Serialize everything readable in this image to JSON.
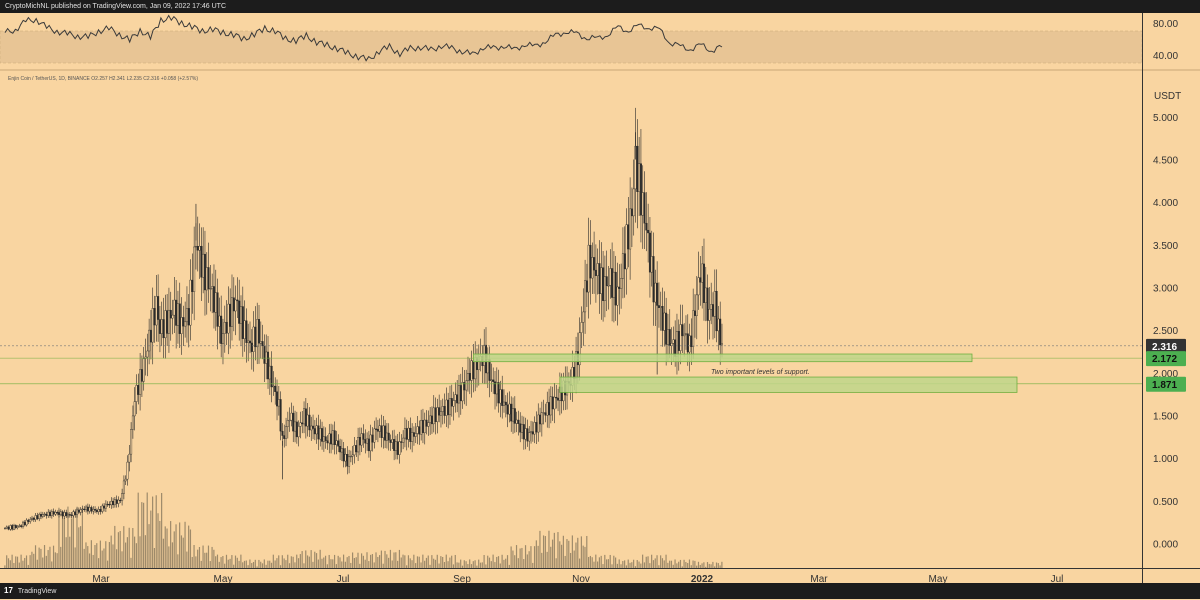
{
  "header": {
    "published": "CryptoMichNL published on TradingView.com, Jan 09, 2022 17:46 UTC"
  },
  "footer": {
    "brand": "TradingView",
    "logo": "17"
  },
  "symbol_info": "Enjin Coin / TetherUS, 1D, BINANCE  O2.257  H2.341  L2.235  C2.316  +0.058 (+2.57%)",
  "colors": {
    "background": "#f9d5a1",
    "candle": "#2a2a2a",
    "volume": "#9e8a6a",
    "zone_fill": "#bfd68a",
    "zone_stroke": "#6fae3f",
    "badge_green": "#4caf50",
    "badge_dark": "#333333",
    "rsi_band": "#e8c595"
  },
  "chart_data": [
    {
      "type": "line",
      "title": "",
      "indicator": "RSI",
      "yticks": [
        "80.00",
        "40.00"
      ],
      "ylim": [
        25,
        90
      ],
      "band": [
        30,
        70
      ],
      "x": [
        0,
        5,
        10,
        15,
        20,
        25,
        30,
        35,
        40,
        45,
        50,
        55,
        60,
        65,
        70,
        75,
        80,
        85,
        90,
        95,
        100,
        105,
        110,
        115,
        120,
        125,
        130,
        135,
        140,
        145,
        150,
        155,
        160,
        165,
        170,
        175,
        180,
        185,
        190,
        195,
        200,
        205,
        210,
        215,
        220,
        225,
        230,
        235,
        240,
        245,
        250,
        255,
        260,
        265,
        270,
        275,
        280,
        285,
        290,
        295,
        300,
        305,
        310,
        315,
        320,
        325,
        330,
        335,
        340,
        345
      ],
      "values": [
        68,
        72,
        82,
        85,
        74,
        70,
        66,
        64,
        62,
        70,
        73,
        66,
        58,
        71,
        62,
        84,
        86,
        80,
        75,
        70,
        72,
        68,
        65,
        60,
        66,
        73,
        70,
        60,
        58,
        64,
        56,
        52,
        48,
        42,
        38,
        34,
        45,
        50,
        42,
        48,
        50,
        46,
        52,
        48,
        45,
        40,
        50,
        48,
        52,
        46,
        54,
        50,
        58,
        64,
        70,
        66,
        62,
        60,
        66,
        74,
        71,
        76,
        75,
        71,
        56,
        50,
        48,
        52,
        46,
        50
      ]
    },
    {
      "type": "candlestick",
      "title": "Enjin Coin / TetherUS",
      "ylabel": "USDT",
      "ylim": [
        -0.3,
        5.35
      ],
      "yticks": [
        "5.000",
        "4.500",
        "4.000",
        "3.500",
        "3.000",
        "2.500",
        "2.000",
        "1.500",
        "1.000",
        "0.500",
        "0.000"
      ],
      "xticks": [
        "Mar",
        "May",
        "Jul",
        "Sep",
        "Nov",
        "2022",
        "Mar",
        "May",
        "Jul"
      ],
      "close_path": [
        [
          0,
          0.18
        ],
        [
          8,
          0.2
        ],
        [
          14,
          0.28
        ],
        [
          20,
          0.33
        ],
        [
          28,
          0.36
        ],
        [
          36,
          0.33
        ],
        [
          44,
          0.41
        ],
        [
          52,
          0.38
        ],
        [
          56,
          0.45
        ],
        [
          60,
          0.48
        ],
        [
          64,
          0.5
        ],
        [
          68,
          0.9
        ],
        [
          72,
          1.7
        ],
        [
          76,
          2.0
        ],
        [
          80,
          2.4
        ],
        [
          84,
          2.8
        ],
        [
          86,
          2.5
        ],
        [
          90,
          2.6
        ],
        [
          94,
          2.75
        ],
        [
          98,
          2.55
        ],
        [
          102,
          2.7
        ],
        [
          106,
          3.55
        ],
        [
          110,
          3.2
        ],
        [
          114,
          3.0
        ],
        [
          118,
          2.7
        ],
        [
          120,
          2.4
        ],
        [
          124,
          2.65
        ],
        [
          128,
          2.85
        ],
        [
          132,
          2.55
        ],
        [
          136,
          2.3
        ],
        [
          140,
          2.5
        ],
        [
          144,
          2.2
        ],
        [
          148,
          1.9
        ],
        [
          152,
          1.6
        ],
        [
          154,
          1.2
        ],
        [
          158,
          1.5
        ],
        [
          162,
          1.3
        ],
        [
          166,
          1.5
        ],
        [
          170,
          1.35
        ],
        [
          174,
          1.3
        ],
        [
          178,
          1.2
        ],
        [
          182,
          1.25
        ],
        [
          186,
          1.1
        ],
        [
          190,
          0.95
        ],
        [
          194,
          1.1
        ],
        [
          198,
          1.25
        ],
        [
          202,
          1.15
        ],
        [
          206,
          1.35
        ],
        [
          210,
          1.3
        ],
        [
          214,
          1.2
        ],
        [
          218,
          1.1
        ],
        [
          222,
          1.3
        ],
        [
          226,
          1.25
        ],
        [
          230,
          1.35
        ],
        [
          234,
          1.4
        ],
        [
          238,
          1.5
        ],
        [
          242,
          1.55
        ],
        [
          246,
          1.6
        ],
        [
          250,
          1.7
        ],
        [
          254,
          1.8
        ],
        [
          258,
          2.0
        ],
        [
          262,
          2.1
        ],
        [
          266,
          2.2
        ],
        [
          270,
          1.9
        ],
        [
          274,
          1.75
        ],
        [
          278,
          1.6
        ],
        [
          282,
          1.5
        ],
        [
          286,
          1.35
        ],
        [
          290,
          1.25
        ],
        [
          294,
          1.35
        ],
        [
          298,
          1.5
        ],
        [
          302,
          1.6
        ],
        [
          306,
          1.7
        ],
        [
          310,
          1.8
        ],
        [
          314,
          1.9
        ],
        [
          318,
          2.2
        ],
        [
          320,
          2.6
        ],
        [
          324,
          3.3
        ],
        [
          328,
          3.2
        ],
        [
          332,
          3.0
        ],
        [
          336,
          3.1
        ],
        [
          340,
          2.9
        ],
        [
          344,
          3.4
        ],
        [
          348,
          3.9
        ],
        [
          350,
          4.5
        ],
        [
          352,
          4.2
        ],
        [
          356,
          3.7
        ],
        [
          360,
          3.0
        ],
        [
          364,
          2.7
        ],
        [
          368,
          2.4
        ],
        [
          372,
          2.3
        ],
        [
          376,
          2.5
        ],
        [
          380,
          2.3
        ],
        [
          384,
          2.9
        ],
        [
          386,
          3.2
        ],
        [
          388,
          3.0
        ],
        [
          390,
          2.7
        ],
        [
          394,
          2.8
        ],
        [
          396,
          2.5
        ],
        [
          398,
          2.32
        ]
      ],
      "volume_peak": [
        0.3,
        0.5,
        1.3,
        0.6,
        0.9,
        1.6,
        1.0,
        0.5,
        0.3,
        0.2,
        0.3,
        0.4,
        0.3,
        0.35,
        0.4,
        0.3,
        0.3,
        0.2,
        0.3,
        0.5,
        0.8,
        0.7,
        0.3,
        0.2,
        0.3,
        0.2,
        0.15
      ],
      "last_price": "2.316",
      "support_levels": [
        {
          "price": 2.172,
          "label": "2.172",
          "zone": [
            2.13,
            2.22
          ]
        },
        {
          "price": 1.871,
          "label": "1.871",
          "zone": [
            1.77,
            1.95
          ]
        }
      ],
      "annotations": [
        "Two important levels of support."
      ]
    }
  ]
}
